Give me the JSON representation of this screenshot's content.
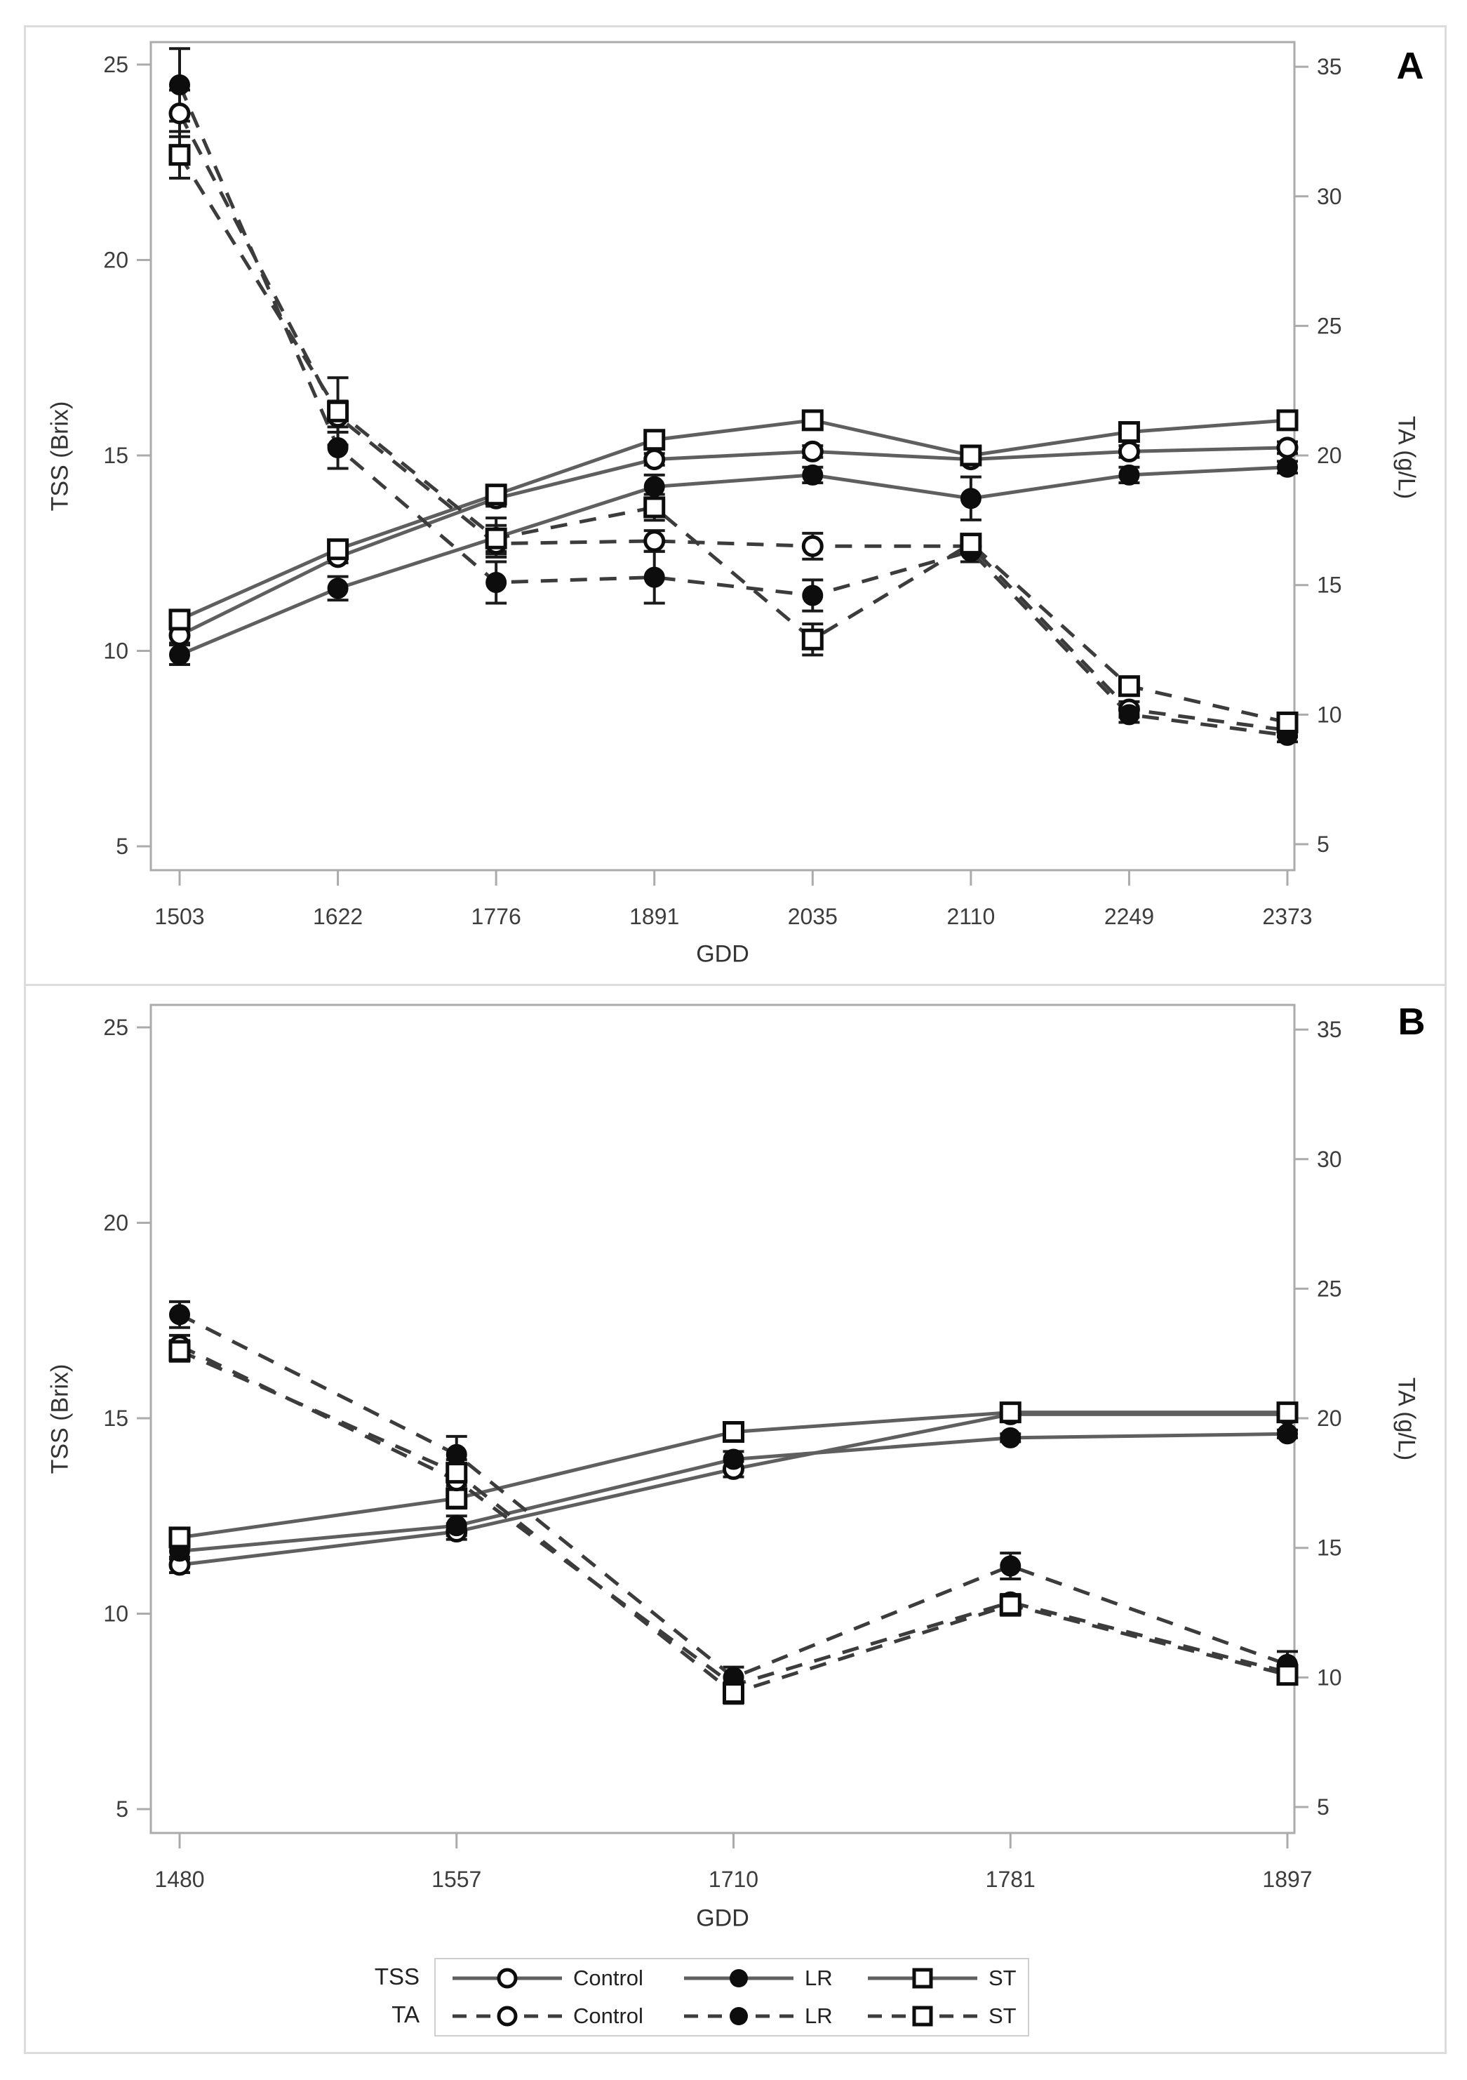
{
  "colors": {
    "solid_line": "#5f5f5f",
    "dashed_line": "#3c3c3c",
    "marker": "#0d0d0d",
    "marker_fill_open": "#ffffff",
    "error_bar": "#1a1a1a",
    "frame": "#ababab",
    "tick_label": "#3d3d3d",
    "axis_title": "#333333",
    "panel_border": "#dcdcdc",
    "legend_border": "#cfcfcf"
  },
  "chart_data": [
    {
      "panel_label": "A",
      "type": "line",
      "xlabel": "GDD",
      "categories": [
        1503,
        1622,
        1776,
        1891,
        2035,
        2110,
        2249,
        2373
      ],
      "y_left": {
        "label": "TSS (Brix)",
        "min": 5,
        "max": 25,
        "ticks": [
          5,
          10,
          15,
          20,
          25
        ]
      },
      "y_right": {
        "label": "TA (g/L)",
        "min": 5,
        "max": 35,
        "ticks": [
          5,
          10,
          15,
          20,
          25,
          30,
          35
        ]
      },
      "series": [
        {
          "name": "Control",
          "measure": "TSS",
          "axis": "left",
          "style": "solid",
          "marker": "open-circle",
          "values": [
            10.4,
            12.4,
            13.9,
            14.9,
            15.1,
            14.9,
            15.1,
            15.2
          ],
          "errors": [
            0.2,
            0.15,
            0.2,
            0.15,
            0.15,
            0.1,
            0.15,
            0.15
          ]
        },
        {
          "name": "LR",
          "measure": "TSS",
          "axis": "left",
          "style": "solid",
          "marker": "filled-circle",
          "values": [
            9.9,
            11.6,
            12.9,
            14.2,
            14.5,
            13.9,
            14.5,
            14.7
          ],
          "errors": [
            0.25,
            0.3,
            0.5,
            0.3,
            0.2,
            0.55,
            0.2,
            0.15
          ]
        },
        {
          "name": "ST",
          "measure": "TSS",
          "axis": "left",
          "style": "solid",
          "marker": "open-square",
          "values": [
            10.8,
            12.6,
            14.0,
            15.4,
            15.9,
            15.0,
            15.6,
            15.9
          ],
          "errors": [
            0.2,
            0.2,
            0.2,
            0.2,
            0.15,
            0.1,
            0.15,
            0.15
          ]
        },
        {
          "name": "Control",
          "measure": "TA",
          "axis": "right",
          "style": "dashed",
          "marker": "open-circle",
          "values": [
            33.2,
            21.5,
            16.6,
            16.7,
            16.5,
            16.5,
            10.2,
            9.4
          ],
          "errors": [
            0.9,
            0.6,
            0.4,
            0.4,
            0.5,
            0.3,
            0.3,
            0.25
          ]
        },
        {
          "name": "LR",
          "measure": "TA",
          "axis": "right",
          "style": "dashed",
          "marker": "filled-circle",
          "values": [
            34.3,
            20.3,
            15.1,
            15.3,
            14.6,
            16.3,
            10.0,
            9.2
          ],
          "errors": [
            1.4,
            0.8,
            0.8,
            1.0,
            0.6,
            0.4,
            0.3,
            0.25
          ]
        },
        {
          "name": "ST",
          "measure": "TA",
          "axis": "right",
          "style": "dashed",
          "marker": "open-square",
          "values": [
            31.6,
            21.7,
            16.8,
            18.0,
            12.9,
            16.6,
            11.1,
            9.7
          ],
          "errors": [
            0.9,
            1.3,
            0.5,
            0.5,
            0.6,
            0.3,
            0.3,
            0.25
          ]
        }
      ]
    },
    {
      "panel_label": "B",
      "type": "line",
      "xlabel": "GDD",
      "categories": [
        1480,
        1557,
        1710,
        1781,
        1897
      ],
      "y_left": {
        "label": "TSS (Brix)",
        "min": 5,
        "max": 25,
        "ticks": [
          5,
          10,
          15,
          20,
          25
        ]
      },
      "y_right": {
        "label": "TA (g/L)",
        "min": 5,
        "max": 35,
        "ticks": [
          5,
          10,
          15,
          20,
          25,
          30,
          35
        ]
      },
      "series": [
        {
          "name": "Control",
          "measure": "TSS",
          "axis": "left",
          "style": "solid",
          "marker": "open-circle",
          "values": [
            11.25,
            12.1,
            13.7,
            15.1,
            15.1
          ],
          "errors": [
            0.2,
            0.2,
            0.2,
            0.1,
            0.1
          ]
        },
        {
          "name": "LR",
          "measure": "TSS",
          "axis": "left",
          "style": "solid",
          "marker": "filled-circle",
          "values": [
            11.6,
            12.25,
            13.95,
            14.5,
            14.6
          ],
          "errors": [
            0.2,
            0.25,
            0.2,
            0.1,
            0.1
          ]
        },
        {
          "name": "ST",
          "measure": "TSS",
          "axis": "left",
          "style": "solid",
          "marker": "open-square",
          "values": [
            11.95,
            12.95,
            14.65,
            15.15,
            15.15
          ],
          "errors": [
            0.2,
            0.25,
            0.15,
            0.1,
            0.1
          ]
        },
        {
          "name": "Control",
          "measure": "TA",
          "axis": "right",
          "style": "dashed",
          "marker": "open-circle",
          "values": [
            22.8,
            17.6,
            9.7,
            12.9,
            10.2
          ],
          "errors": [
            0.4,
            0.5,
            0.3,
            0.3,
            0.3
          ]
        },
        {
          "name": "LR",
          "measure": "TA",
          "axis": "right",
          "style": "dashed",
          "marker": "filled-circle",
          "values": [
            24.0,
            18.6,
            10.0,
            14.3,
            10.5
          ],
          "errors": [
            0.5,
            0.7,
            0.4,
            0.5,
            0.5
          ]
        },
        {
          "name": "ST",
          "measure": "TA",
          "axis": "right",
          "style": "dashed",
          "marker": "open-square",
          "values": [
            22.6,
            17.9,
            9.4,
            12.8,
            10.1
          ],
          "errors": [
            0.4,
            0.5,
            0.4,
            0.4,
            0.3
          ]
        }
      ]
    }
  ],
  "legend": {
    "rows": [
      {
        "header": "TSS",
        "style": "solid",
        "entries": [
          {
            "label": "Control",
            "marker": "open-circle"
          },
          {
            "label": "LR",
            "marker": "filled-circle"
          },
          {
            "label": "ST",
            "marker": "open-square"
          }
        ]
      },
      {
        "header": "TA",
        "style": "dashed",
        "entries": [
          {
            "label": "Control",
            "marker": "open-circle"
          },
          {
            "label": "LR",
            "marker": "filled-circle"
          },
          {
            "label": "ST",
            "marker": "open-square"
          }
        ]
      }
    ]
  }
}
